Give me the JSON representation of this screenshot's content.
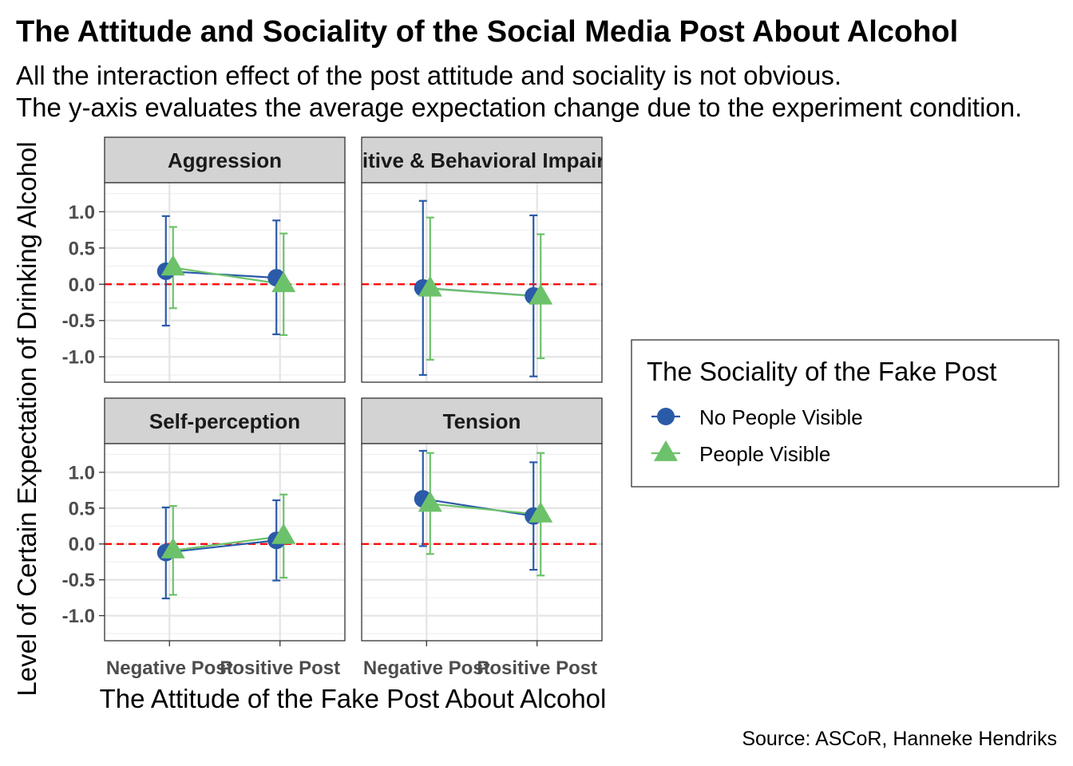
{
  "chart_data": {
    "type": "line",
    "title": "The Attitude and Sociality of the Social Media Post About Alcohol",
    "subtitle_lines": [
      "All the interaction effect of the post attitude and sociality is not obvious.",
      "The y-axis evaluates the average expectation change due to the experiment condition."
    ],
    "xlabel": "The Attitude of the Fake Post About Alcohol",
    "ylabel": "Level of Certain Expectation of Drinking Alcohol",
    "caption": "Source: ASCoR, Hanneke Hendriks",
    "categories": [
      "Negative Post",
      "Positive Post"
    ],
    "y_ticks": [
      1.0,
      0.5,
      0.0,
      -0.5,
      -1.0
    ],
    "y_tick_labels": [
      "1.0",
      "0.5",
      "0.0",
      "-0.5",
      "-1.0"
    ],
    "ylim": [
      -1.35,
      1.4
    ],
    "reference_line": 0,
    "legend": {
      "title": "The Sociality of the Fake Post",
      "position": "right",
      "entries": [
        "No People Visible",
        "People Visible"
      ]
    },
    "series_colors": {
      "No People Visible": "#2b5aa8",
      "People Visible": "#6cc26a"
    },
    "panels": [
      {
        "strip": "Aggression",
        "series": [
          {
            "name": "No People Visible",
            "y": [
              0.18,
              0.09
            ],
            "ymin": [
              -0.57,
              -0.69
            ],
            "ymax": [
              0.94,
              0.88
            ]
          },
          {
            "name": "People Visible",
            "y": [
              0.23,
              0.0
            ],
            "ymin": [
              -0.33,
              -0.7
            ],
            "ymax": [
              0.79,
              0.7
            ]
          }
        ]
      },
      {
        "strip": "Cognitive & Behavioral Impairment",
        "series": [
          {
            "name": "No People Visible",
            "y": [
              -0.05,
              -0.16
            ],
            "ymin": [
              -1.25,
              -1.27
            ],
            "ymax": [
              1.15,
              0.95
            ]
          },
          {
            "name": "People Visible",
            "y": [
              -0.06,
              -0.17
            ],
            "ymin": [
              -1.04,
              -1.02
            ],
            "ymax": [
              0.92,
              0.69
            ]
          }
        ]
      },
      {
        "strip": "Self-perception",
        "series": [
          {
            "name": "No People Visible",
            "y": [
              -0.12,
              0.05
            ],
            "ymin": [
              -0.76,
              -0.51
            ],
            "ymax": [
              0.51,
              0.61
            ]
          },
          {
            "name": "People Visible",
            "y": [
              -0.09,
              0.11
            ],
            "ymin": [
              -0.71,
              -0.47
            ],
            "ymax": [
              0.53,
              0.69
            ]
          }
        ]
      },
      {
        "strip": "Tension",
        "series": [
          {
            "name": "No People Visible",
            "y": [
              0.63,
              0.39
            ],
            "ymin": [
              -0.03,
              -0.36
            ],
            "ymax": [
              1.3,
              1.14
            ]
          },
          {
            "name": "People Visible",
            "y": [
              0.56,
              0.41
            ],
            "ymin": [
              -0.14,
              -0.44
            ],
            "ymax": [
              1.27,
              1.27
            ]
          }
        ]
      }
    ]
  }
}
